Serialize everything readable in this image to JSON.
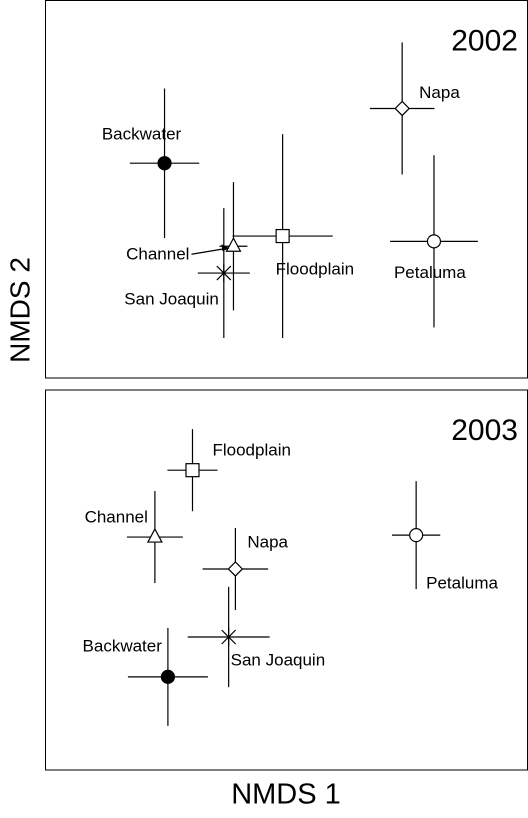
{
  "chart_data": [
    {
      "type": "scatter",
      "title": "2002",
      "ylabel": "NMDS 2",
      "xlim": [
        0,
        100
      ],
      "ylim": [
        0,
        100
      ],
      "grid": false,
      "series": [
        {
          "name": "Backwater",
          "marker": "circle-filled",
          "color": "#000000",
          "x": [
            24.8
          ],
          "y": [
            56.9
          ],
          "xerr": [
            7.2
          ],
          "yerr": [
            19.8
          ]
        },
        {
          "name": "Channel",
          "marker": "triangle",
          "color": "#000000",
          "x": [
            39.1
          ],
          "y": [
            34.9
          ],
          "xerr": [
            2.9
          ],
          "yerr": [
            17.0
          ]
        },
        {
          "name": "San Joaquin",
          "marker": "star",
          "color": "#000000",
          "x": [
            37.1
          ],
          "y": [
            27.8
          ],
          "xerr": [
            5.4
          ],
          "yerr": [
            17.2
          ]
        },
        {
          "name": "Floodplain",
          "marker": "square",
          "color": "#000000",
          "x": [
            49.3
          ],
          "y": [
            37.6
          ],
          "xerr": [
            10.4
          ],
          "yerr": [
            27.0
          ]
        },
        {
          "name": "Napa",
          "marker": "diamond",
          "color": "#000000",
          "x": [
            74.1
          ],
          "y": [
            71.4
          ],
          "xerr": [
            6.7
          ],
          "yerr": [
            17.5
          ]
        },
        {
          "name": "Petaluma",
          "marker": "circle",
          "color": "#000000",
          "x": [
            80.7
          ],
          "y": [
            36.2
          ],
          "xerr": [
            9.1
          ],
          "yerr": [
            22.8
          ]
        }
      ]
    },
    {
      "type": "scatter",
      "title": "2003",
      "xlabel": "NMDS 1",
      "xlim": [
        0,
        100
      ],
      "ylim": [
        0,
        100
      ],
      "grid": false,
      "series": [
        {
          "name": "Floodplain",
          "marker": "square",
          "color": "#000000",
          "x": [
            30.6
          ],
          "y": [
            78.9
          ],
          "xerr": [
            5.2
          ],
          "yerr": [
            10.8
          ]
        },
        {
          "name": "Channel",
          "marker": "triangle",
          "color": "#000000",
          "x": [
            22.8
          ],
          "y": [
            61.3
          ],
          "xerr": [
            5.8
          ],
          "yerr": [
            12.1
          ]
        },
        {
          "name": "Napa",
          "marker": "diamond",
          "color": "#000000",
          "x": [
            39.5
          ],
          "y": [
            52.9
          ],
          "xerr": [
            6.8
          ],
          "yerr": [
            10.8
          ]
        },
        {
          "name": "Petaluma",
          "marker": "circle",
          "color": "#000000",
          "x": [
            77.0
          ],
          "y": [
            61.8
          ],
          "xerr": [
            5.0
          ],
          "yerr": [
            14.2
          ]
        },
        {
          "name": "San Joaquin",
          "marker": "star",
          "color": "#000000",
          "x": [
            38.1
          ],
          "y": [
            35.0
          ],
          "xerr": [
            8.5
          ],
          "yerr": [
            13.2
          ]
        },
        {
          "name": "Backwater",
          "marker": "circle-filled",
          "color": "#000000",
          "x": [
            25.5
          ],
          "y": [
            24.5
          ],
          "xerr": [
            8.3
          ],
          "yerr": [
            12.9
          ]
        }
      ]
    }
  ]
}
